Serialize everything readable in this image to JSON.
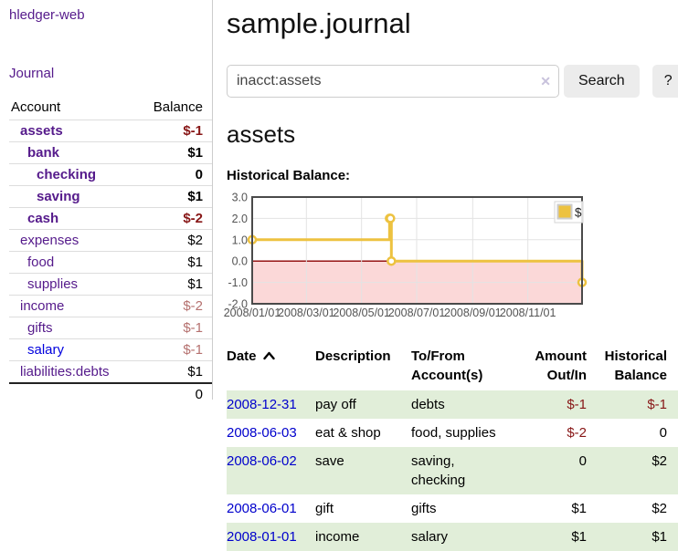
{
  "colors": {
    "link_purple": "#551a8b",
    "link_blue": "#0000cc",
    "negative_red": "#871616",
    "negative_muted": "#b5716f",
    "stripe_green": "#e1eed9",
    "chart_line_yellow": "#edc240",
    "chart_zero_line": "#8b0000",
    "chart_negative_fill": "#fbd8d8",
    "button_gray": "#ececec"
  },
  "sidebar": {
    "app_title": "hledger-web",
    "journal_link": "Journal",
    "accounts_header": {
      "account": "Account",
      "balance": "Balance"
    },
    "accounts": [
      {
        "name": "assets",
        "balance": "$-1",
        "indent": 1,
        "bold": true,
        "balance_class": "neg"
      },
      {
        "name": "bank",
        "balance": "$1",
        "indent": 2,
        "bold": true,
        "balance_class": ""
      },
      {
        "name": "checking",
        "balance": "0",
        "indent": 3,
        "bold": true,
        "balance_class": ""
      },
      {
        "name": "saving",
        "balance": "$1",
        "indent": 3,
        "bold": true,
        "balance_class": ""
      },
      {
        "name": "cash",
        "balance": "$-2",
        "indent": 2,
        "bold": true,
        "balance_class": "neg"
      },
      {
        "name": "expenses",
        "balance": "$2",
        "indent": 1,
        "bold": false,
        "balance_class": ""
      },
      {
        "name": "food",
        "balance": "$1",
        "indent": 2,
        "bold": false,
        "balance_class": ""
      },
      {
        "name": "supplies",
        "balance": "$1",
        "indent": 2,
        "bold": false,
        "balance_class": ""
      },
      {
        "name": "income",
        "balance": "$-2",
        "indent": 1,
        "bold": false,
        "balance_class": "negmuted"
      },
      {
        "name": "gifts",
        "balance": "$-1",
        "indent": 2,
        "bold": false,
        "balance_class": "negmuted"
      },
      {
        "name": "salary",
        "balance": "$-1",
        "indent": 2,
        "bold": false,
        "balance_class": "negmuted",
        "link_color": "blue"
      },
      {
        "name": "liabilities:debts",
        "balance": "$1",
        "indent": 1,
        "bold": false,
        "balance_class": ""
      }
    ],
    "total": "0"
  },
  "main": {
    "title": "sample.journal",
    "search": {
      "value": "inacct:assets",
      "clear_icon": "✕",
      "button_label": "Search",
      "help_label": "?"
    },
    "account_heading": "assets",
    "chart_title": "Historical Balance:"
  },
  "chart_data": {
    "type": "line",
    "step": true,
    "title": "Historical Balance",
    "legend": [
      "$"
    ],
    "legend_position": "top-right",
    "grid": true,
    "x_range": [
      "2008-01-01",
      "2008-12-31"
    ],
    "ylim": [
      -2.0,
      3.0
    ],
    "yticks": [
      3,
      2,
      1,
      0,
      -1,
      -2
    ],
    "xtick_labels": [
      "2008/01/01",
      "2008/03/01",
      "2008/05/01",
      "2008/07/01",
      "2008/09/01",
      "2008/11/01"
    ],
    "series": [
      {
        "name": "$",
        "color": "#edc240",
        "points": [
          [
            "2008-01-01",
            1
          ],
          [
            "2008-06-01",
            2
          ],
          [
            "2008-06-02",
            2
          ],
          [
            "2008-06-03",
            0
          ],
          [
            "2008-12-31",
            -1
          ]
        ]
      }
    ],
    "zero_line_color": "#8b0000",
    "negative_region_shaded": true
  },
  "table": {
    "headers": [
      {
        "label": "Date",
        "sort": "asc"
      },
      {
        "label": "Description"
      },
      {
        "label": "To/From\nAccount(s)"
      },
      {
        "label": "Amount\nOut/In",
        "align": "right"
      },
      {
        "label": "Historical\nBalance",
        "align": "right"
      }
    ],
    "rows": [
      {
        "date": "2008-12-31",
        "description": "pay off",
        "accounts": "debts",
        "amount": "$-1",
        "amount_class": "neg",
        "balance": "$-1",
        "balance_class": "neg"
      },
      {
        "date": "2008-06-03",
        "description": "eat & shop",
        "accounts": "food, supplies",
        "amount": "$-2",
        "amount_class": "neg",
        "balance": "0",
        "balance_class": ""
      },
      {
        "date": "2008-06-02",
        "description": "save",
        "accounts": "saving,\nchecking",
        "amount": "0",
        "amount_class": "",
        "balance": "$2",
        "balance_class": ""
      },
      {
        "date": "2008-06-01",
        "description": "gift",
        "accounts": "gifts",
        "amount": "$1",
        "amount_class": "",
        "balance": "$2",
        "balance_class": ""
      },
      {
        "date": "2008-01-01",
        "description": "income",
        "accounts": "salary",
        "amount": "$1",
        "amount_class": "",
        "balance": "$1",
        "balance_class": ""
      }
    ]
  }
}
